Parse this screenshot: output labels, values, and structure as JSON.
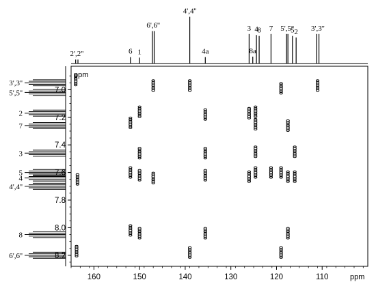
{
  "chart_data": {
    "type": "scatter",
    "subtype": "2D HMBC NMR spectrum",
    "x_unit": "ppm",
    "y_unit": "ppm",
    "xlim": [
      165,
      100
    ],
    "ylim": [
      6.83,
      8.28
    ],
    "x_ticks": [
      160,
      150,
      140,
      130,
      120,
      110
    ],
    "y_ticks": [
      7.0,
      7.2,
      7.4,
      7.6,
      7.8,
      8.0,
      8.2
    ],
    "x_axis_label": "ppm",
    "y_axis_label": "ppm",
    "grid": false,
    "top_spectrum_peaks": [
      {
        "label": "2',2''",
        "shifts": [
          164.0,
          163.5
        ],
        "intensity": 0.08
      },
      {
        "label": "6",
        "shifts": [
          152.0
        ],
        "intensity": 0.13
      },
      {
        "label": "1",
        "shifts": [
          150.0
        ],
        "intensity": 0.12
      },
      {
        "label": "6',6''",
        "shifts": [
          147.2,
          146.8
        ],
        "intensity": 0.66
      },
      {
        "label": "4',4''",
        "shifts": [
          139.0
        ],
        "intensity": 0.95
      },
      {
        "label": "4a",
        "shifts": [
          135.6
        ],
        "intensity": 0.13
      },
      {
        "label": "3",
        "shifts": [
          126.0
        ],
        "intensity": 0.6
      },
      {
        "label": "8a",
        "shifts": [
          125.2
        ],
        "intensity": 0.14
      },
      {
        "label": "4",
        "shifts": [
          124.4
        ],
        "intensity": 0.58
      },
      {
        "label": "8",
        "shifts": [
          123.8
        ],
        "intensity": 0.56
      },
      {
        "label": "7",
        "shifts": [
          121.2
        ],
        "intensity": 0.6
      },
      {
        "label": "5',5''",
        "shifts": [
          117.8,
          117.5
        ],
        "intensity": 0.6
      },
      {
        "label": "5",
        "shifts": [
          116.5
        ],
        "intensity": 0.56
      },
      {
        "label": "2",
        "shifts": [
          115.7
        ],
        "intensity": 0.53
      },
      {
        "label": "3',3''",
        "shifts": [
          111.2,
          110.7
        ],
        "intensity": 0.6
      }
    ],
    "left_spectrum_peaks": [
      {
        "label": "3',3''",
        "shift": 6.95
      },
      {
        "label": "5',5''",
        "shift": 7.02
      },
      {
        "label": "2",
        "shift": 7.17
      },
      {
        "label": "7",
        "shift": 7.26
      },
      {
        "label": "3",
        "shift": 7.46
      },
      {
        "label": "5",
        "shift": 7.6
      },
      {
        "label": "4",
        "shift": 7.64
      },
      {
        "label": "4',4''",
        "shift": 7.7
      },
      {
        "label": "8",
        "shift": 8.05
      },
      {
        "label": "6',6''",
        "shift": 8.2
      }
    ],
    "cross_peaks": [
      {
        "x": 164.0,
        "y": 6.93
      },
      {
        "x": 163.6,
        "y": 7.65
      },
      {
        "x": 163.8,
        "y": 8.17
      },
      {
        "x": 152.0,
        "y": 7.24
      },
      {
        "x": 152.0,
        "y": 7.6
      },
      {
        "x": 152.0,
        "y": 8.02
      },
      {
        "x": 150.0,
        "y": 7.16
      },
      {
        "x": 150.0,
        "y": 7.46
      },
      {
        "x": 150.0,
        "y": 7.62
      },
      {
        "x": 150.0,
        "y": 8.04
      },
      {
        "x": 147.0,
        "y": 6.97
      },
      {
        "x": 147.0,
        "y": 7.64
      },
      {
        "x": 139.0,
        "y": 6.97
      },
      {
        "x": 139.0,
        "y": 8.18
      },
      {
        "x": 135.6,
        "y": 7.18
      },
      {
        "x": 135.6,
        "y": 7.46
      },
      {
        "x": 135.6,
        "y": 7.62
      },
      {
        "x": 135.6,
        "y": 8.04
      },
      {
        "x": 126.0,
        "y": 7.17
      },
      {
        "x": 126.0,
        "y": 7.63
      },
      {
        "x": 124.6,
        "y": 7.16
      },
      {
        "x": 124.6,
        "y": 7.25
      },
      {
        "x": 124.6,
        "y": 7.45
      },
      {
        "x": 124.6,
        "y": 7.6
      },
      {
        "x": 121.2,
        "y": 7.6
      },
      {
        "x": 119.0,
        "y": 6.99
      },
      {
        "x": 119.0,
        "y": 7.6
      },
      {
        "x": 119.0,
        "y": 8.18
      },
      {
        "x": 117.5,
        "y": 7.26
      },
      {
        "x": 117.5,
        "y": 7.63
      },
      {
        "x": 117.5,
        "y": 8.04
      },
      {
        "x": 116.0,
        "y": 7.45
      },
      {
        "x": 116.0,
        "y": 7.63
      },
      {
        "x": 111.0,
        "y": 6.97
      }
    ]
  }
}
